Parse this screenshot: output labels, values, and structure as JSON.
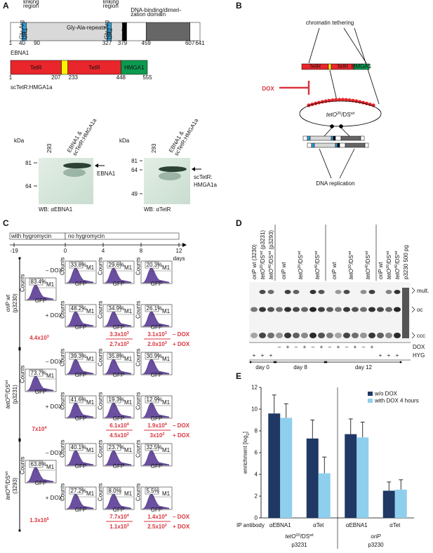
{
  "panel_a": {
    "letter": "A",
    "ebna1": {
      "name": "EBNA1",
      "positions": [
        1,
        40,
        90,
        327,
        379,
        459,
        607,
        641
      ],
      "domains": [
        [
          "linking",
          "region"
        ],
        [
          "Gly-Arg",
          "UR1"
        ],
        [
          "Gly-Ala-repeats"
        ],
        [
          "linking",
          "region"
        ],
        [
          "Gly-Arg",
          "UR2"
        ],
        [
          "NLS"
        ],
        [
          "DNA-binding/dimeri-",
          "zation domain"
        ]
      ]
    },
    "fusion": {
      "name": "scTetR:HMGA1a",
      "positions": [
        1,
        207,
        233,
        448,
        555
      ],
      "domains": [
        "TetR",
        "TetR",
        "HMGA1"
      ]
    },
    "blots": [
      {
        "unit": "kDa",
        "lanes": [
          [
            "293"
          ],
          [
            "EBNA1 &",
            "scTetR:HMGA1a"
          ]
        ],
        "markers": [
          81,
          64
        ],
        "band": [
          "EBNA1"
        ],
        "caption": "WB: αEBNA1"
      },
      {
        "unit": "kDa",
        "lanes": [
          [
            "293"
          ],
          [
            "EBNA1 &",
            "scTetR:HMGA1a"
          ]
        ],
        "markers": [
          81,
          64,
          49
        ],
        "band": [
          "scTetR:",
          "HMGA1a"
        ],
        "caption": "WB: αTetR"
      }
    ]
  },
  "panel_b": {
    "letter": "B",
    "top": "chromatin tethering",
    "fusion_domains": [
      "TetR",
      "TetR",
      "HMGA1"
    ],
    "drug": "DOX",
    "plasmid": [
      "tetO",
      {
        "sup": "20"
      },
      "/DS",
      {
        "sup": "wt"
      }
    ],
    "bottom": "DNA replication"
  },
  "panel_c": {
    "letter": "C",
    "timeline": {
      "phases": [
        "with hygromycin",
        "no hygromycin"
      ],
      "ticks": [
        -19,
        0,
        4,
        8,
        12
      ],
      "unit": "days"
    },
    "histogram_axes": {
      "y": "Counts",
      "x": "GFP",
      "gate": "M1"
    },
    "conditions": [
      "– DOX",
      "+ DOX"
    ],
    "groups": [
      {
        "label": [
          "oriP",
          " wt"
        ],
        "plasmid": "(p3230)",
        "day0": "83.4%",
        "minus_dox": [
          "33.8%",
          "29.6%",
          "20.3%"
        ],
        "plus_dox": [
          "48.2%",
          "34.9%",
          "26.1%"
        ],
        "colonies_day0": [
          "4.4x10",
          {
            "sup": "3"
          }
        ],
        "colonies_day8": [
          [
            "3.3x10",
            {
              "sup": "3"
            }
          ],
          [
            "2.7x10",
            {
              "sup": "3"
            }
          ]
        ],
        "colonies_day12": [
          [
            "3.1x10",
            {
              "sup": "3"
            }
          ],
          [
            "2.0x10",
            {
              "sup": "3"
            }
          ]
        ]
      },
      {
        "label": [
          "tetO",
          {
            "sup": "20"
          },
          "/DS",
          {
            "sup": "wt"
          }
        ],
        "plasmid": "(p3231)",
        "day0": "73.7%",
        "minus_dox": [
          "39.3%",
          "35.8%",
          "30.9%"
        ],
        "plus_dox": [
          "41.6%",
          "19.3%",
          "12.9%"
        ],
        "colonies_day0": [
          "7x10",
          {
            "sup": "4"
          }
        ],
        "colonies_day8": [
          [
            "6.1x10",
            {
              "sup": "4"
            }
          ],
          [
            "4.5x10",
            {
              "sup": "2"
            }
          ]
        ],
        "colonies_day12": [
          [
            "1.9x10",
            {
              "sup": "4"
            }
          ],
          [
            "3x10",
            {
              "sup": "2"
            }
          ]
        ]
      },
      {
        "label": [
          "tetO",
          {
            "sup": "40"
          },
          "/DS",
          {
            "sup": "wt"
          }
        ],
        "plasmid": "(3293)",
        "day0": "63.8%",
        "minus_dox": [
          "40.1%",
          "23.7%",
          "32.5%"
        ],
        "plus_dox": [
          "27.2%",
          "8.0%",
          "5.5%"
        ],
        "colonies_day0": [
          "1.3x10",
          {
            "sup": "5"
          }
        ],
        "colonies_day8": [
          [
            "7.7x10",
            {
              "sup": "4"
            }
          ],
          [
            "1.1x10",
            {
              "sup": "3"
            }
          ]
        ],
        "colonies_day12": [
          [
            "1.4x10",
            {
              "sup": "4"
            }
          ],
          [
            "2.5x10",
            {
              "sup": "2"
            }
          ]
        ]
      }
    ]
  },
  "panel_d": {
    "letter": "D",
    "lanes": [
      [
        "oriP",
        " wt (3230)"
      ],
      [
        "tetO",
        {
          "sup": "20"
        },
        "/DS",
        {
          "sup": "wt"
        },
        " (p3231)"
      ],
      [
        "tetO",
        {
          "sup": "40"
        },
        "/DS",
        {
          "sup": "wt"
        },
        " (p3293)"
      ],
      [
        "oriP",
        " wt"
      ],
      [
        "tetO",
        {
          "sup": "20"
        },
        "/DS",
        {
          "sup": "wt"
        }
      ],
      [
        "tetO",
        {
          "sup": "40"
        },
        "/DS",
        {
          "sup": "wt"
        }
      ],
      [
        "oriP",
        " wt"
      ],
      [
        "tetO",
        {
          "sup": "20"
        },
        "/DS",
        {
          "sup": "wt"
        }
      ],
      [
        "tetO",
        {
          "sup": "40"
        },
        "/DS",
        {
          "sup": "wt"
        }
      ],
      [
        "oriP",
        " wt"
      ],
      [
        "tetO",
        {
          "sup": "20"
        },
        "/DS",
        {
          "sup": "wt"
        }
      ],
      [
        "tetO",
        {
          "sup": "40"
        },
        "/DS",
        {
          "sup": "wt"
        }
      ],
      [
        "p3230 500 pg"
      ]
    ],
    "forms": [
      "mult.",
      "oc",
      "ccc"
    ],
    "conditions": [
      "DOX",
      "HYG"
    ],
    "dox": [
      "–",
      "+",
      "–",
      "+",
      "–",
      "+",
      "–",
      "+",
      "–",
      "+",
      "–",
      "+"
    ],
    "hyg": [
      "+",
      "+",
      "+",
      "+",
      "+",
      "+"
    ],
    "days": [
      "day 0",
      "day 8",
      "day 12"
    ]
  },
  "chart_data": {
    "type": "bar",
    "panel_letter": "E",
    "y_label": [
      "enrichment [log",
      {
        "sub": "2"
      },
      "]"
    ],
    "categories": [
      "αEBNA1",
      "αTet",
      "αEBNA1",
      "αTet"
    ],
    "category_title": "IP antibody",
    "groups": [
      {
        "label": [
          "tetO",
          {
            "sup": "20"
          },
          "/DS",
          {
            "sup": "wt"
          }
        ],
        "plasmid": "p3231"
      },
      {
        "label": [
          "oriP"
        ],
        "plasmid": "p3230"
      }
    ],
    "series": [
      {
        "name": "w/o DOX",
        "color": "#1f3864",
        "values": [
          9.6,
          7.3,
          7.7,
          2.5
        ],
        "errors": [
          1.7,
          1.7,
          1.4,
          0.8
        ]
      },
      {
        "name": "with DOX 4 hours",
        "color": "#8fcfee",
        "values": [
          9.2,
          4.1,
          7.4,
          2.6
        ],
        "errors": [
          1.3,
          1.5,
          1.4,
          0.9
        ]
      }
    ],
    "ylim": [
      0,
      12
    ],
    "yticks": [
      0,
      2,
      4,
      6,
      8,
      10,
      12
    ],
    "grid": false,
    "legend": "upper right"
  }
}
